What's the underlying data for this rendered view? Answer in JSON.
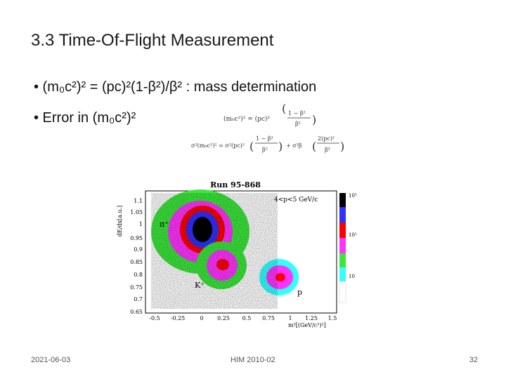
{
  "slide": {
    "title": "3.3 Time-Of-Flight Measurement",
    "bullet1": "• (m₀c²)² = (pc)²(1-β²)/β² : mass determination",
    "bullet2": "• Error in (m₀c²)²"
  },
  "equations": {
    "eq1_lhs": "(m₀c²)² = (pc)²",
    "eq1_num": "1 − β²",
    "eq1_den": "β²",
    "eq2_lhs": "σ²(m₀c²)² = σ²(pc)²",
    "eq2_mid": "+ σ²β",
    "eq2_num2": "2(pc)²",
    "eq2_den2": "β³"
  },
  "plot": {
    "title": "Run 95-868",
    "condition": "4<p<5 GeV/c",
    "ylabel": "dE/dx[a.u.]",
    "xlabel": "m²[(GeV/c²)²]",
    "y_ticks": [
      "1.1",
      "1.05",
      "1",
      "0.95",
      "0.9",
      "0.85",
      "0.8",
      "0.75",
      "0.7",
      "0.65"
    ],
    "x_ticks": [
      "-0.5",
      "-0.25",
      "0",
      "0.25",
      "0.5",
      "0.75",
      "1",
      "1.25",
      "1.5"
    ],
    "labels": {
      "pion": "π⁺",
      "kaon": "K⁺",
      "proton": "p"
    },
    "colorbar": {
      "top": "10³",
      "mid": "10²",
      "bottom": "10"
    }
  },
  "footer": {
    "date": "2021-06-03",
    "center": "HIM 2010-02",
    "page": "32"
  }
}
